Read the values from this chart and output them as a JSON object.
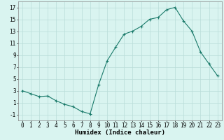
{
  "x": [
    0,
    1,
    2,
    3,
    4,
    5,
    6,
    7,
    8,
    9,
    10,
    11,
    12,
    13,
    14,
    15,
    16,
    17,
    18,
    19,
    20,
    21,
    22,
    23
  ],
  "y": [
    3.0,
    2.5,
    2.0,
    2.1,
    1.3,
    0.7,
    0.3,
    -0.5,
    -0.9,
    4.0,
    8.0,
    10.3,
    12.5,
    13.0,
    13.8,
    15.0,
    15.3,
    16.6,
    17.0,
    14.7,
    13.0,
    9.5,
    7.5,
    5.5
  ],
  "line_color": "#1a7a6a",
  "marker": "+",
  "marker_size": 3.5,
  "marker_lw": 0.8,
  "line_width": 0.8,
  "bg_color": "#d9f4f0",
  "grid_color": "#b8ddd8",
  "xlabel": "Humidex (Indice chaleur)",
  "ylim": [
    -2,
    18
  ],
  "xlim": [
    -0.5,
    23.5
  ],
  "yticks": [
    -1,
    1,
    3,
    5,
    7,
    9,
    11,
    13,
    15,
    17
  ],
  "xticks": [
    0,
    1,
    2,
    3,
    4,
    5,
    6,
    7,
    8,
    9,
    10,
    11,
    12,
    13,
    14,
    15,
    16,
    17,
    18,
    19,
    20,
    21,
    22,
    23
  ],
  "xlabel_fontsize": 6.5,
  "tick_fontsize": 5.5
}
